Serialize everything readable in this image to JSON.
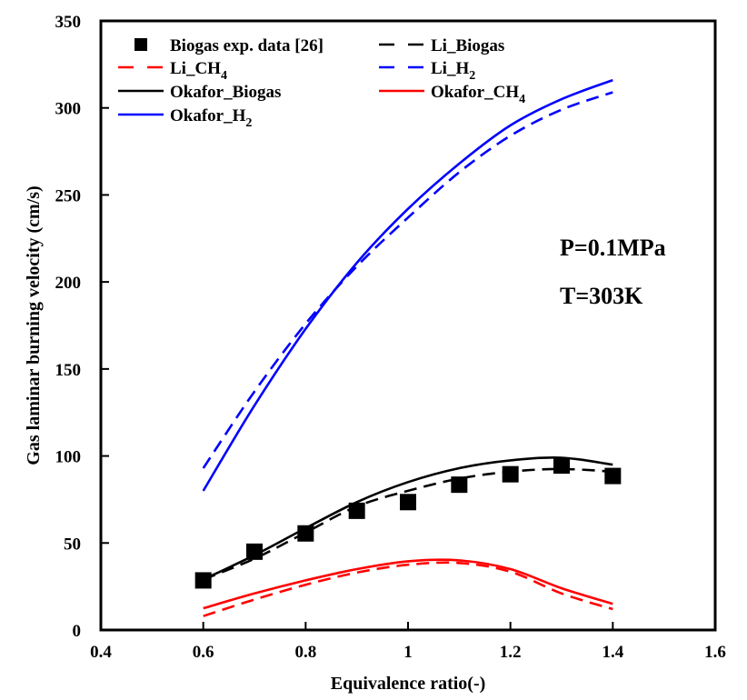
{
  "chart_data": {
    "type": "line",
    "title": "",
    "xlabel": "Equivalence ratio(-)",
    "ylabel": "Gas laminar burning velocity (cm/s)",
    "xlim": [
      0.4,
      1.6
    ],
    "ylim": [
      0,
      350
    ],
    "xticks": [
      "0.4",
      "0.6",
      "0.8",
      "1",
      "1.2",
      "1.4",
      "1.6"
    ],
    "xtick_values": [
      0.4,
      0.6,
      0.8,
      1.0,
      1.2,
      1.4,
      1.6
    ],
    "yticks": [
      "0",
      "50",
      "100",
      "150",
      "200",
      "250",
      "300",
      "350"
    ],
    "ytick_values": [
      0,
      50,
      100,
      150,
      200,
      250,
      300,
      350
    ],
    "grid": false,
    "legend_placement": "top-left",
    "annotations": [
      "P=0.1MPa",
      "T=303K"
    ],
    "x": [
      0.6,
      0.7,
      0.8,
      0.9,
      1.0,
      1.1,
      1.2,
      1.3,
      1.4
    ],
    "series": [
      {
        "name": "Biogas exp. data [26]",
        "label_main": "Biogas exp. data [26]",
        "label_sub": "",
        "kind": "marker",
        "color": "#000000",
        "values": [
          28.5,
          45,
          55.5,
          68.5,
          73.5,
          83.5,
          89.5,
          94.5,
          88.5
        ]
      },
      {
        "name": "Li_Biogas",
        "label_main": "Li_Biogas",
        "label_sub": "",
        "kind": "dashed",
        "color": "#000000",
        "values": [
          29,
          41,
          56,
          71,
          80,
          87,
          91,
          92.5,
          91
        ]
      },
      {
        "name": "Li_CH4",
        "label_main": "Li_CH",
        "label_sub": "4",
        "kind": "dashed",
        "color": "#ff0000",
        "values": [
          8,
          17.5,
          26,
          33,
          37.5,
          38.5,
          33.5,
          21,
          12
        ]
      },
      {
        "name": "Li_H2",
        "label_main": "Li_H",
        "label_sub": "2",
        "kind": "dashed",
        "color": "#0000ff",
        "values": [
          93,
          137,
          176,
          209,
          237,
          263,
          284,
          299,
          309
        ]
      },
      {
        "name": "Okafor_Biogas",
        "label_main": "Okafor_Biogas",
        "label_sub": "",
        "kind": "solid",
        "color": "#000000",
        "values": [
          29,
          43,
          58.5,
          73.5,
          85,
          93,
          97.5,
          99,
          95
        ]
      },
      {
        "name": "Okafor_CH4",
        "label_main": "Okafor_CH",
        "label_sub": "4",
        "kind": "solid",
        "color": "#ff0000",
        "values": [
          12.5,
          21,
          28.5,
          35,
          39.5,
          40,
          35,
          24,
          15
        ]
      },
      {
        "name": "Okafor_H2",
        "label_main": "Okafor_H",
        "label_sub": "2",
        "kind": "solid",
        "color": "#0000ff",
        "values": [
          80,
          129,
          173,
          211,
          242,
          268,
          290,
          305,
          316
        ]
      }
    ],
    "legend_order": [
      0,
      1,
      2,
      3,
      4,
      5,
      6
    ]
  }
}
